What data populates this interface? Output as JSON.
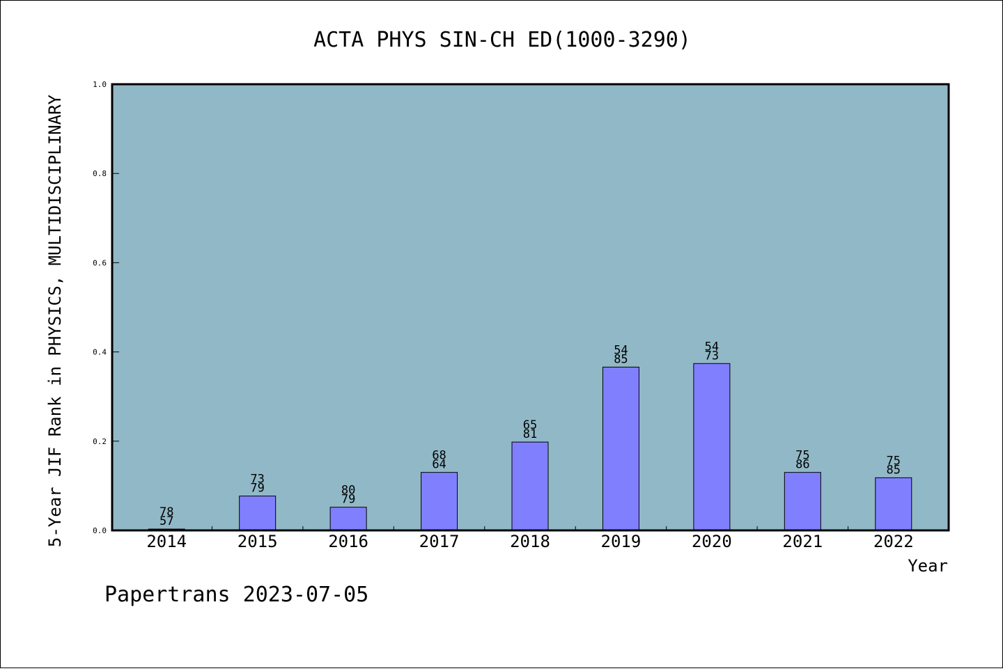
{
  "chart_data": {
    "type": "bar",
    "title": "ACTA PHYS SIN-CH ED(1000-3290)",
    "xlabel": "Year",
    "ylabel": "5-Year JIF Rank in PHYSICS, MULTIDISCIPLINARY",
    "ylim": [
      0,
      1.0
    ],
    "yticks": [
      "0.0",
      "0.2",
      "0.4",
      "0.6",
      "0.8",
      "1.0"
    ],
    "categories": [
      "2014",
      "2015",
      "2016",
      "2017",
      "2018",
      "2019",
      "2020",
      "2021",
      "2022"
    ],
    "values": [
      0.003,
      0.077,
      0.052,
      0.13,
      0.198,
      0.366,
      0.374,
      0.13,
      0.118
    ],
    "labels_top": [
      "78",
      "73",
      "80",
      "68",
      "65",
      "54",
      "54",
      "75",
      "75"
    ],
    "labels_bottom": [
      "57",
      "79",
      "79",
      "64",
      "81",
      "85",
      "73",
      "86",
      "85"
    ],
    "plot_background": "#91b8c6",
    "bar_color": "#8080ff",
    "grid": false
  },
  "footer": "Papertrans 2023-07-05"
}
